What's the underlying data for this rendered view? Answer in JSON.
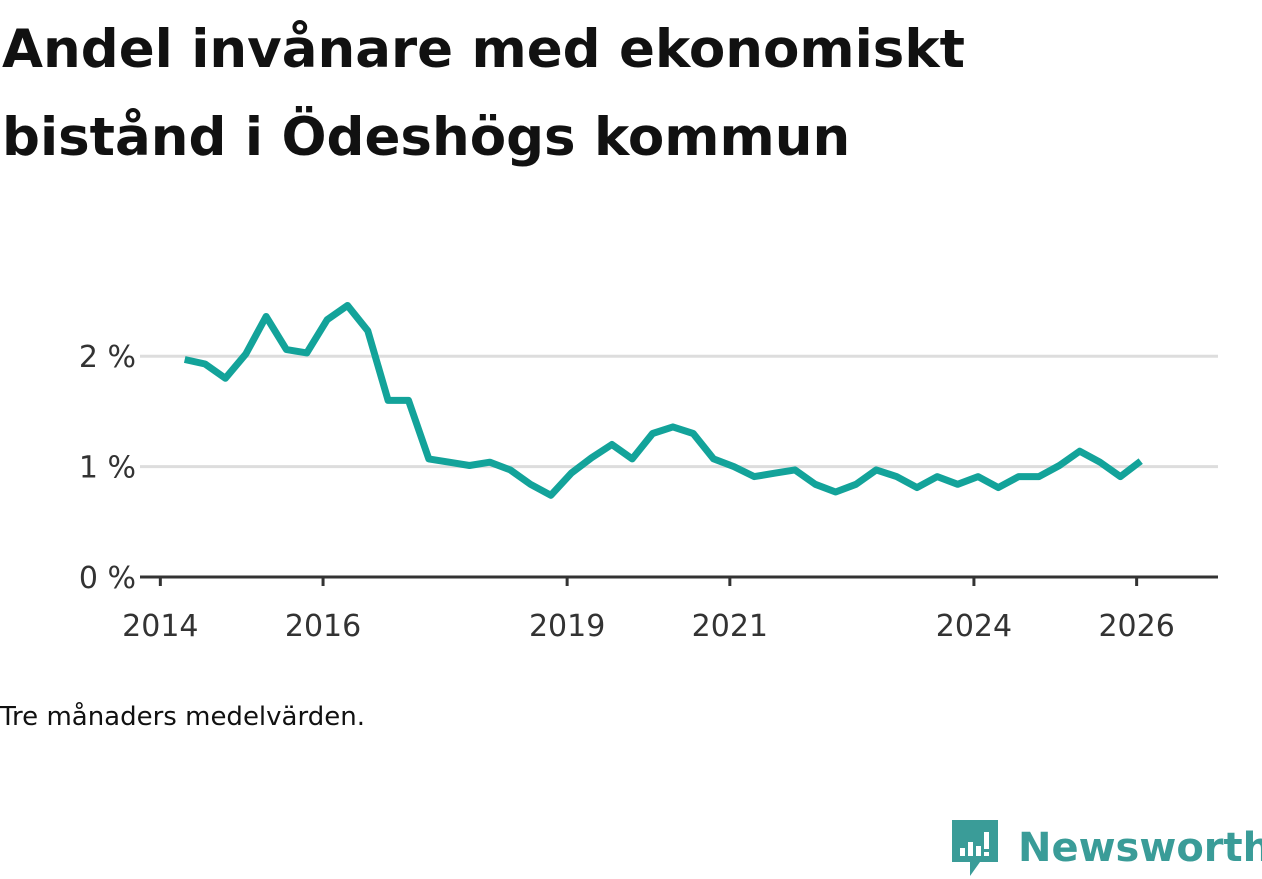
{
  "title": "Andel invånare med ekonomiskt bistånd i Ödeshögs kommun",
  "note": "Tre månaders medelvärden.",
  "brand": {
    "name": "Newsworthy",
    "color": "#3a9c98",
    "icon": "bar-chart-bubble-icon"
  },
  "colors": {
    "line": "#13a39a",
    "grid": "#dddddd",
    "axis": "#333333",
    "text": "#111111"
  },
  "chart_data": {
    "type": "line",
    "title": "Andel invånare med ekonomiskt bistånd i Ödeshögs kommun",
    "xlabel": "",
    "ylabel": "",
    "x_ticks": [
      2014,
      2016,
      2019,
      2021,
      2024,
      2026
    ],
    "x_tick_labels": [
      "2014",
      "2016",
      "2019",
      "2021",
      "2024",
      "2026"
    ],
    "y_ticks": [
      0,
      1,
      2
    ],
    "y_tick_labels": [
      "0 %",
      "1 %",
      "2 %"
    ],
    "xlim": [
      2013.75,
      2027.0
    ],
    "ylim": [
      0,
      2.6
    ],
    "grid": true,
    "series": [
      {
        "name": "Andel invånare med ekonomiskt bistånd",
        "x": [
          2014.3,
          2014.55,
          2014.8,
          2015.05,
          2015.3,
          2015.55,
          2015.8,
          2016.05,
          2016.3,
          2016.55,
          2016.8,
          2017.05,
          2017.3,
          2017.55,
          2017.8,
          2018.05,
          2018.3,
          2018.55,
          2018.8,
          2019.05,
          2019.3,
          2019.55,
          2019.8,
          2020.05,
          2020.3,
          2020.55,
          2020.8,
          2021.05,
          2021.3,
          2021.55,
          2021.8,
          2022.05,
          2022.3,
          2022.55,
          2022.8,
          2023.05,
          2023.3,
          2023.55,
          2023.8,
          2024.05,
          2024.3,
          2024.55,
          2024.8,
          2025.05,
          2025.3,
          2025.55,
          2025.8,
          2026.05
        ],
        "values": [
          1.97,
          1.93,
          1.8,
          2.02,
          2.36,
          2.06,
          2.03,
          2.33,
          2.46,
          2.23,
          1.6,
          1.6,
          1.07,
          1.04,
          1.01,
          1.04,
          0.97,
          0.84,
          0.74,
          0.94,
          1.08,
          1.2,
          1.07,
          1.3,
          1.36,
          1.3,
          1.07,
          1.0,
          0.91,
          0.94,
          0.97,
          0.84,
          0.77,
          0.84,
          0.97,
          0.91,
          0.81,
          0.91,
          0.84,
          0.91,
          0.81,
          0.91,
          0.91,
          1.01,
          1.14,
          1.04,
          0.91,
          1.05
        ]
      }
    ]
  }
}
